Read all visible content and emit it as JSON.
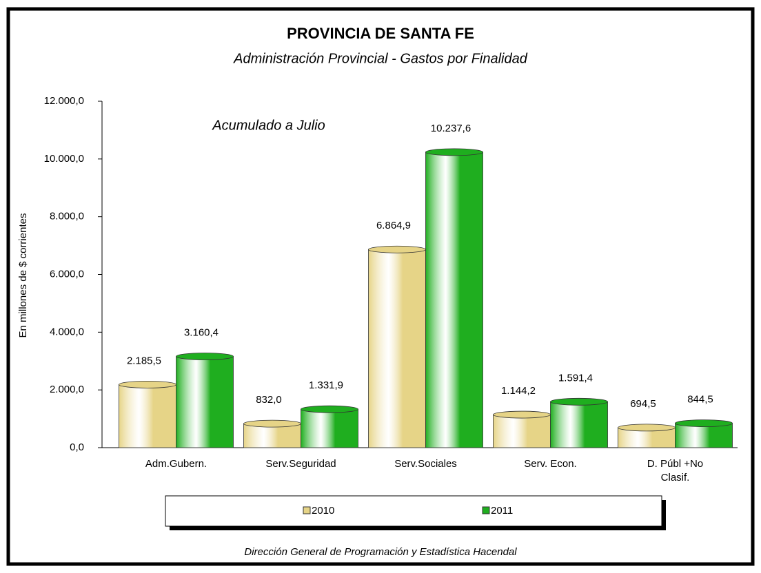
{
  "chart_data": {
    "type": "bar",
    "title": "PROVINCIA DE SANTA FE",
    "subtitle": "Administración Provincial - Gastos por Finalidad",
    "annotation": "Acumulado a Julio",
    "y_label": "En millones de $ corrientes",
    "source": "Dirección General de Programación y Estadística Hacendal",
    "categories": [
      "Adm.Gubern.",
      "Serv.Seguridad",
      "Serv.Sociales",
      "Serv. Econ.",
      "D. Públ +No Clasif."
    ],
    "series": [
      {
        "name": "2010",
        "color": "#e6d487",
        "values": [
          2185.5,
          832.0,
          6864.9,
          1144.2,
          694.5
        ],
        "value_labels": [
          "2.185,5",
          "832,0",
          "6.864,9",
          "1.144,2",
          "694,5"
        ]
      },
      {
        "name": "2011",
        "color": "#1fae1f",
        "values": [
          3160.4,
          1331.9,
          10237.6,
          1591.4,
          844.5
        ],
        "value_labels": [
          "3.160,4",
          "1.331,9",
          "10.237,6",
          "1.591,4",
          "844,5"
        ]
      }
    ],
    "ylim": [
      0,
      12000
    ],
    "yticks": [
      {
        "value": 0,
        "label": "0,0"
      },
      {
        "value": 2000,
        "label": "2.000,0"
      },
      {
        "value": 4000,
        "label": "4.000,0"
      },
      {
        "value": 6000,
        "label": "6.000,0"
      },
      {
        "value": 8000,
        "label": "8.000,0"
      },
      {
        "value": 10000,
        "label": "10.000,0"
      },
      {
        "value": 12000,
        "label": "12.000,0"
      }
    ],
    "legend": "bottom"
  }
}
